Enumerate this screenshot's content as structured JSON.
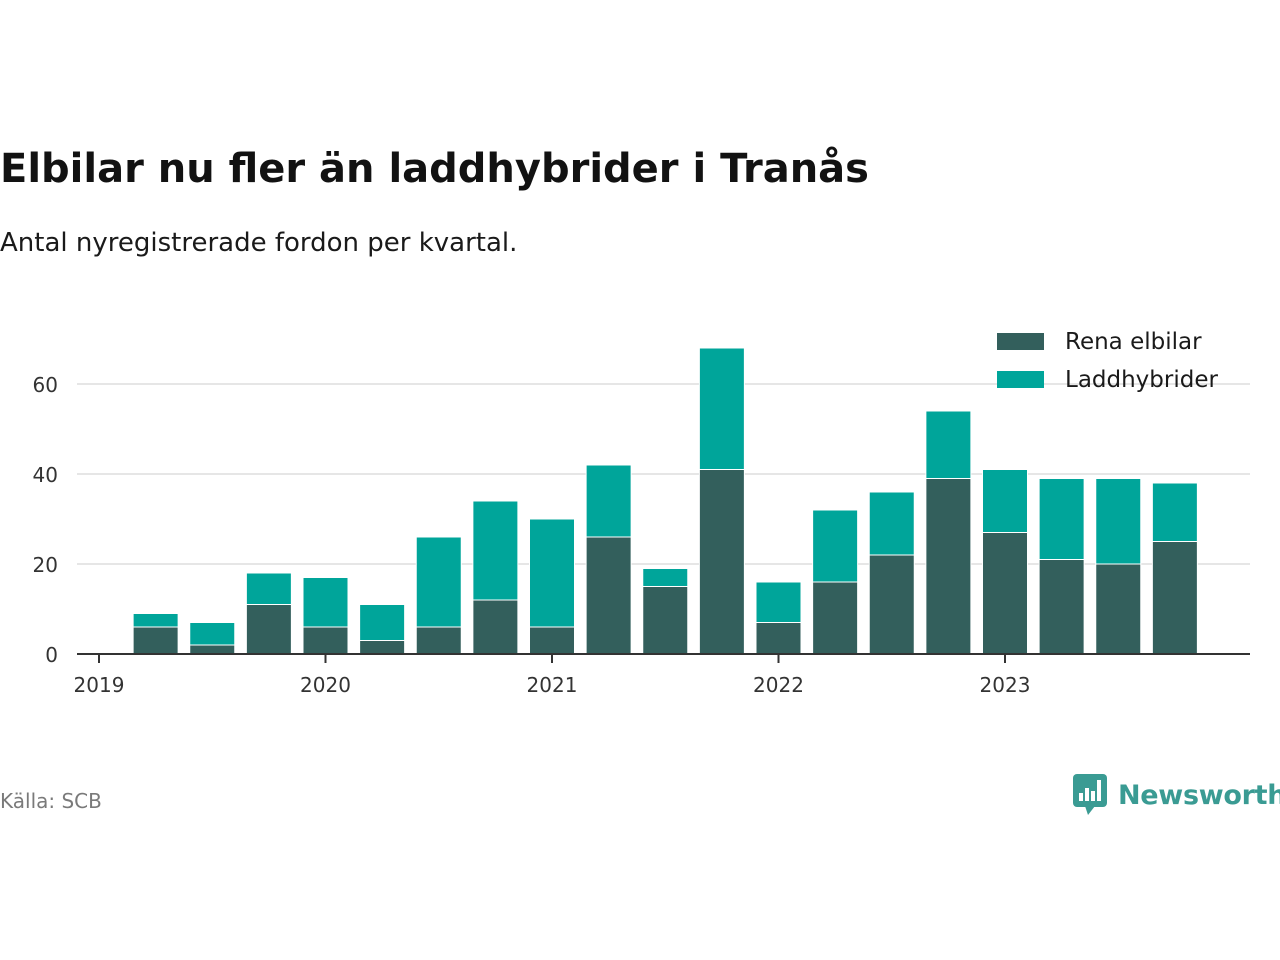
{
  "title": "Elbilar nu fler än laddhybrider i Tranås",
  "subtitle": "Antal nyregistrerade fordon per kvartal.",
  "source": "Källa: SCB",
  "brand": {
    "name": "Newsworthy",
    "icon": "newsworthy-logo-icon"
  },
  "colors": {
    "rena_elbilar": "#335f5c",
    "laddhybrider": "#00a59a",
    "grid": "#dddddd",
    "axis": "#333333",
    "brand": "#3a9b93"
  },
  "chart_data": {
    "type": "bar",
    "stacked": true,
    "title": "Elbilar nu fler än laddhybrider i Tranås",
    "subtitle": "Antal nyregistrerade fordon per kvartal.",
    "xlabel": "",
    "ylabel": "",
    "ylim": [
      0,
      70
    ],
    "yticks": [
      0,
      20,
      40,
      60
    ],
    "grid": true,
    "legend": "top-right",
    "x_tick_labels": [
      "2019",
      "2020",
      "2021",
      "2022",
      "2023"
    ],
    "categories": [
      "2019 Q2",
      "2019 Q3",
      "2019 Q4",
      "2020 Q1",
      "2020 Q2",
      "2020 Q3",
      "2020 Q4",
      "2021 Q1",
      "2021 Q2",
      "2021 Q3",
      "2021 Q4",
      "2022 Q1",
      "2022 Q2",
      "2022 Q3",
      "2022 Q4",
      "2023 Q1",
      "2023 Q2",
      "2023 Q3",
      "2023 Q4"
    ],
    "series": [
      {
        "name": "Rena elbilar",
        "values": [
          6,
          2,
          11,
          6,
          3,
          6,
          12,
          6,
          26,
          15,
          41,
          7,
          16,
          22,
          39,
          27,
          21,
          20,
          25
        ]
      },
      {
        "name": "Laddhybrider",
        "values": [
          3,
          5,
          7,
          11,
          8,
          20,
          22,
          24,
          16,
          4,
          27,
          9,
          16,
          14,
          15,
          14,
          18,
          19,
          13
        ]
      }
    ]
  }
}
